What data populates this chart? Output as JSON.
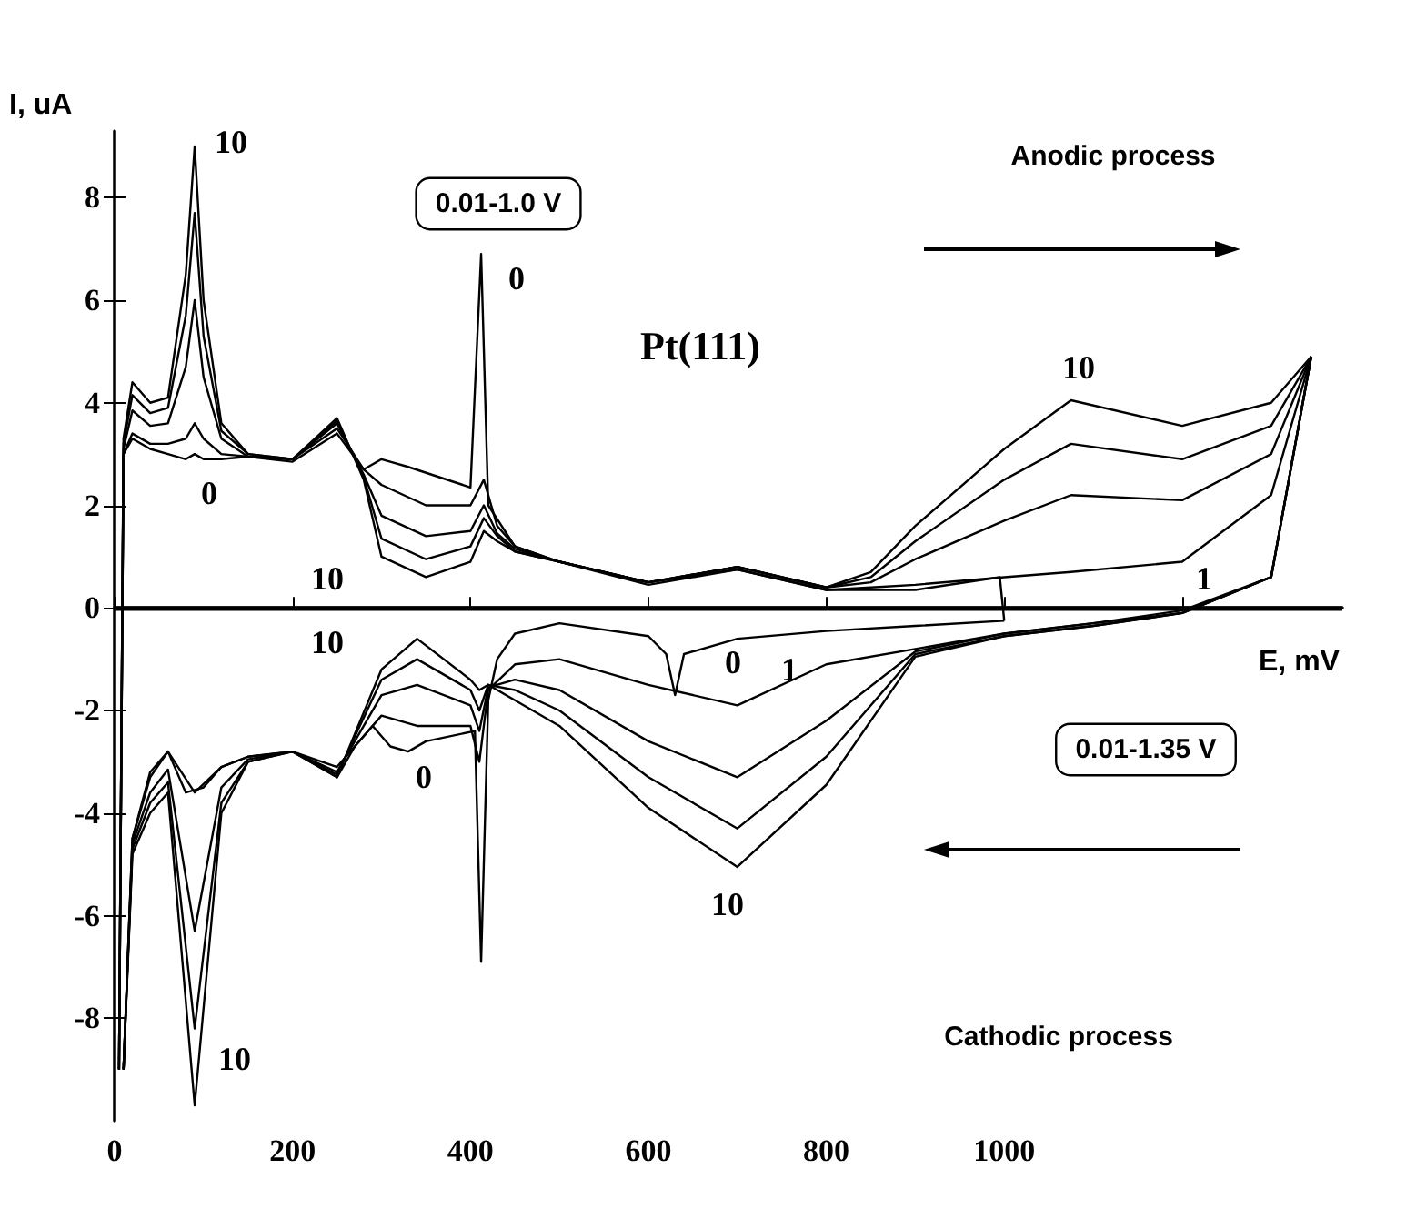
{
  "chart_data": {
    "type": "line",
    "xlabel": "E, mV",
    "ylabel": "I, uA",
    "xlim": [
      0,
      1380
    ],
    "ylim": [
      -10,
      9.3
    ],
    "xticks": [
      0,
      200,
      400,
      600,
      800,
      1000,
      {
        "value": 1200,
        "label": null
      }
    ],
    "yticks": [
      -8,
      -6,
      -4,
      -2,
      0,
      2,
      4,
      6,
      8
    ],
    "marker": "none",
    "line_style": "solid",
    "ref_lines": [
      {
        "axis": "y",
        "value": 0,
        "color": "#000000"
      }
    ],
    "series": [
      {
        "color": "#000000",
        "x": [
          5,
          10,
          20,
          40,
          60,
          80,
          90,
          100,
          120,
          150,
          200,
          250,
          280,
          300,
          330,
          400,
          412,
          420,
          450,
          500,
          600,
          700,
          800,
          900,
          995,
          1000
        ],
        "values": [
          -9.0,
          3.0,
          3.3,
          3.1,
          3.0,
          2.9,
          3.0,
          2.9,
          2.9,
          2.95,
          2.85,
          3.4,
          2.7,
          2.9,
          2.75,
          2.35,
          6.9,
          2.0,
          1.2,
          0.9,
          0.45,
          0.75,
          0.35,
          0.35,
          0.6,
          -0.25
        ]
      },
      {
        "color": "#000000",
        "x": [
          1000,
          900,
          800,
          700,
          640,
          630,
          620,
          600,
          500,
          450,
          430,
          420,
          412,
          405,
          350,
          330,
          310,
          290,
          270,
          250,
          200,
          150,
          120,
          100,
          80,
          60,
          40,
          20,
          10
        ],
        "values": [
          -0.25,
          -0.35,
          -0.45,
          -0.6,
          -0.9,
          -1.7,
          -0.9,
          -0.55,
          -0.3,
          -0.5,
          -1.0,
          -1.8,
          -6.9,
          -2.4,
          -2.6,
          -2.8,
          -2.7,
          -2.3,
          -2.7,
          -3.3,
          -2.8,
          -2.9,
          -3.1,
          -3.5,
          -3.6,
          -2.8,
          -3.2,
          -4.5,
          -9.0
        ]
      },
      {
        "color": "#000000",
        "x": [
          5,
          10,
          20,
          40,
          60,
          80,
          90,
          100,
          120,
          150,
          200,
          250,
          280,
          300,
          350,
          400,
          415,
          430,
          450,
          500,
          600,
          700,
          800,
          850,
          900,
          1000,
          1075,
          1200,
          1300,
          1345
        ],
        "values": [
          -9.0,
          3.0,
          3.4,
          3.2,
          3.2,
          3.3,
          3.6,
          3.3,
          3.0,
          2.95,
          2.9,
          3.5,
          2.7,
          2.4,
          2.0,
          2.0,
          2.5,
          1.6,
          1.2,
          0.9,
          0.5,
          0.75,
          0.35,
          0.4,
          0.45,
          0.6,
          0.7,
          0.9,
          2.2,
          4.9
        ]
      },
      {
        "color": "#000000",
        "x": [
          1345,
          1300,
          1200,
          1100,
          1000,
          900,
          800,
          700,
          600,
          500,
          450,
          420,
          410,
          400,
          340,
          300,
          250,
          200,
          150,
          120,
          90,
          60,
          40,
          20,
          10
        ],
        "values": [
          4.9,
          0.6,
          -0.05,
          -0.3,
          -0.5,
          -0.8,
          -1.1,
          -1.9,
          -1.5,
          -1.0,
          -1.1,
          -1.6,
          -3.0,
          -2.3,
          -2.3,
          -2.1,
          -3.1,
          -2.8,
          -2.9,
          -3.1,
          -3.6,
          -2.8,
          -3.3,
          -4.5,
          -9.0
        ]
      },
      {
        "color": "#000000",
        "x": [
          5,
          10,
          20,
          40,
          60,
          80,
          90,
          100,
          120,
          150,
          200,
          250,
          280,
          300,
          350,
          400,
          415,
          430,
          450,
          500,
          600,
          700,
          800,
          850,
          900,
          1000,
          1075,
          1200,
          1300,
          1345
        ],
        "values": [
          -9.0,
          3.1,
          3.85,
          3.55,
          3.6,
          4.7,
          6.0,
          4.5,
          3.3,
          2.95,
          2.9,
          3.6,
          2.6,
          1.8,
          1.4,
          1.5,
          2.0,
          1.45,
          1.15,
          0.9,
          0.5,
          0.8,
          0.4,
          0.5,
          0.95,
          1.7,
          2.2,
          2.1,
          3.0,
          4.9
        ]
      },
      {
        "color": "#000000",
        "x": [
          1345,
          1300,
          1200,
          1100,
          1000,
          900,
          800,
          700,
          600,
          500,
          450,
          420,
          410,
          400,
          340,
          300,
          250,
          200,
          150,
          120,
          90,
          60,
          40,
          20,
          10
        ],
        "values": [
          4.9,
          0.6,
          -0.1,
          -0.3,
          -0.5,
          -0.85,
          -2.2,
          -3.3,
          -2.6,
          -1.6,
          -1.4,
          -1.55,
          -2.4,
          -1.9,
          -1.5,
          -1.7,
          -3.2,
          -2.8,
          -2.95,
          -3.5,
          -6.3,
          -3.15,
          -3.6,
          -4.6,
          -9.0
        ]
      },
      {
        "color": "#000000",
        "x": [
          5,
          10,
          20,
          40,
          60,
          80,
          90,
          100,
          120,
          150,
          200,
          250,
          280,
          300,
          350,
          400,
          415,
          430,
          450,
          500,
          600,
          700,
          800,
          850,
          900,
          1000,
          1075,
          1200,
          1300,
          1345
        ],
        "values": [
          -9.0,
          3.2,
          4.15,
          3.8,
          3.9,
          5.7,
          7.7,
          5.3,
          3.45,
          3.0,
          2.9,
          3.65,
          2.55,
          1.35,
          0.95,
          1.2,
          1.75,
          1.4,
          1.1,
          0.9,
          0.5,
          0.8,
          0.4,
          0.6,
          1.3,
          2.5,
          3.2,
          2.9,
          3.55,
          4.9
        ]
      },
      {
        "color": "#000000",
        "x": [
          1345,
          1300,
          1200,
          1100,
          1000,
          900,
          800,
          700,
          600,
          500,
          450,
          420,
          410,
          400,
          340,
          300,
          250,
          200,
          150,
          120,
          90,
          60,
          40,
          20,
          10
        ],
        "values": [
          4.9,
          0.6,
          -0.1,
          -0.35,
          -0.55,
          -0.9,
          -2.9,
          -4.3,
          -3.3,
          -2.0,
          -1.6,
          -1.5,
          -2.0,
          -1.6,
          -1.0,
          -1.4,
          -3.25,
          -2.8,
          -3.0,
          -3.8,
          -8.2,
          -3.4,
          -3.8,
          -4.7,
          -9.0
        ]
      },
      {
        "color": "#000000",
        "x": [
          5,
          10,
          20,
          40,
          60,
          80,
          90,
          100,
          120,
          150,
          200,
          250,
          280,
          300,
          350,
          400,
          415,
          430,
          450,
          500,
          600,
          700,
          800,
          850,
          900,
          1000,
          1075,
          1200,
          1300,
          1345
        ],
        "values": [
          -9.0,
          3.3,
          4.4,
          4.0,
          4.1,
          6.5,
          9.0,
          6.0,
          3.6,
          3.0,
          2.9,
          3.7,
          2.5,
          1.0,
          0.6,
          0.9,
          1.5,
          1.3,
          1.1,
          0.9,
          0.5,
          0.8,
          0.4,
          0.7,
          1.6,
          3.1,
          4.05,
          3.55,
          4.0,
          4.9
        ]
      },
      {
        "color": "#000000",
        "x": [
          1345,
          1300,
          1200,
          1100,
          1000,
          900,
          800,
          700,
          600,
          500,
          450,
          420,
          410,
          400,
          340,
          300,
          250,
          200,
          150,
          120,
          90,
          60,
          40,
          20,
          10
        ],
        "values": [
          4.9,
          0.6,
          -0.1,
          -0.35,
          -0.55,
          -0.95,
          -3.45,
          -5.05,
          -3.9,
          -2.3,
          -1.8,
          -1.5,
          -1.6,
          -1.4,
          -0.6,
          -1.2,
          -3.3,
          -2.8,
          -3.0,
          -4.0,
          -9.7,
          -3.6,
          -4.0,
          -4.8,
          -9.0
        ]
      }
    ],
    "annotations": [
      "0.01-1.0 V",
      "Pt(111)",
      "Anodic process",
      "0.01-1.35 V",
      "Cathodic process",
      "10",
      "0",
      "0",
      "10",
      "10",
      "0",
      "0",
      "1",
      "10",
      "10",
      "10",
      "1"
    ]
  }
}
